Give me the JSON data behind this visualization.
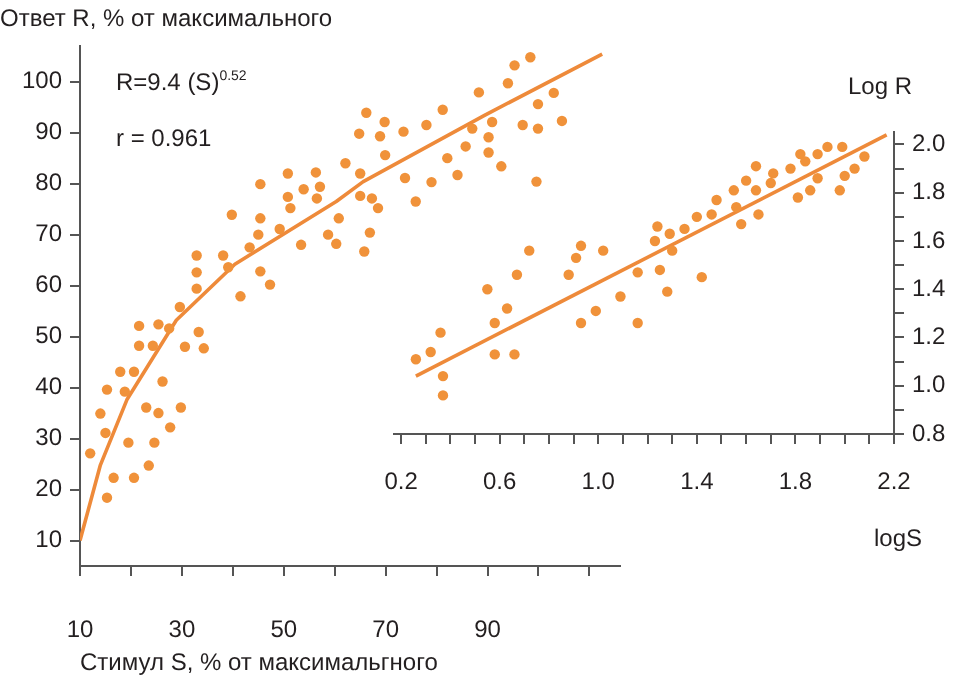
{
  "chart_data": [
    {
      "type": "scatter",
      "xlabel": "Стимул S, % от максимальгного",
      "ylabel": "Ответ R, % от максимального",
      "annotations": [
        "R=9.4 (S)$^{0.52}$",
        "r = 0.961"
      ],
      "xlim": [
        10,
        116
      ],
      "xticks": [
        10,
        {
          "value": 20,
          "label": null
        },
        30,
        {
          "value": 40,
          "label": null
        },
        50,
        {
          "value": 60,
          "label": null
        },
        70,
        {
          "value": 80,
          "label": null
        },
        90,
        {
          "value": 100,
          "label": null
        },
        {
          "value": 110,
          "label": null
        }
      ],
      "ylim": [
        5,
        107
      ],
      "yticks": [
        10,
        20,
        30,
        40,
        50,
        60,
        70,
        80,
        90,
        100
      ],
      "grid": false,
      "legend": false,
      "marker": "circle",
      "series": [
        {
          "type": "scatter",
          "color": "#f0923a",
          "x": [
            12.0,
            14,
            15,
            15.3,
            15.3,
            16.6,
            17.9,
            18.8,
            19.5,
            20.6,
            20.6,
            21.6,
            21.6,
            23,
            23.5,
            24.3,
            24.6,
            25.4,
            25.4,
            26.2,
            27.5,
            27.7,
            29.6,
            29.8,
            30.6,
            32.9,
            32.9,
            32.9,
            33.3,
            34.3,
            38.1,
            39.1,
            39.8,
            41.5,
            43.3,
            45.0,
            45.4,
            45.4,
            45.4,
            47.3,
            49.2,
            50.8,
            50.8,
            51.3,
            53.4,
            53.9,
            56.3,
            56.5,
            57.1,
            58.7,
            60.3,
            60.8,
            62.1,
            64.8,
            65.0,
            65.0,
            65.8,
            66.2,
            66.9,
            67.3,
            68.5,
            68.9,
            69.8,
            69.9,
            73.5,
            73.8,
            75.9,
            78.0,
            79.0,
            81.2,
            82.1,
            84.1,
            85.7,
            87.0,
            88.3,
            95.3,
            98.4,
            94.0,
            90.9,
            90.2,
            90.2,
            92.7,
            96.9,
            99.9,
            99.9,
            99.6,
            103.0,
            104.6
          ],
          "values": [
            27.1,
            34.9,
            31.1,
            39.6,
            18.4,
            22.3,
            43.1,
            39.2,
            29.2,
            43.1,
            22.3,
            52.1,
            48.2,
            36.1,
            24.7,
            48.2,
            29.2,
            52.4,
            35,
            41.2,
            51.6,
            32.2,
            55.8,
            36.1,
            48,
            65.9,
            62.6,
            59.4,
            50.9,
            47.7,
            65.9,
            63.6,
            73.9,
            57.9,
            67.5,
            70,
            79.9,
            73.2,
            62.8,
            60.2,
            71.1,
            82,
            77.4,
            75.2,
            68,
            78.9,
            82.2,
            77.1,
            79.4,
            70,
            68.2,
            73.2,
            84,
            89.8,
            82,
            77.6,
            66.7,
            93.9,
            70.4,
            77.1,
            75.2,
            89.3,
            92.1,
            85.6,
            90.2,
            81.1,
            76.5,
            91.5,
            80.3,
            94.5,
            85.0,
            81.7,
            87.3,
            90.8,
            97.9,
            103.2,
            104.8,
            99.7,
            92.1,
            89.1,
            86.1,
            83.4,
            91.5,
            95.6,
            90.8,
            80.4,
            97.8,
            92.3
          ]
        },
        {
          "type": "line",
          "color": "#ee8a3a",
          "marker": "none",
          "x": [
            10,
            14,
            19.2,
            28.9,
            40.4,
            60.3,
            65.6,
            89.4,
            112.5
          ],
          "values": [
            10,
            24.8,
            37.6,
            53.2,
            64.2,
            76.5,
            80.4,
            93.4,
            105.4
          ]
        }
      ]
    },
    {
      "type": "scatter",
      "xlabel": "logS",
      "ylabel": "Log R",
      "xlim": [
        0.17,
        2.2
      ],
      "xticks": [
        0.2,
        {
          "value": 0.3,
          "label": null
        },
        {
          "value": 0.4,
          "label": null
        },
        {
          "value": 0.5,
          "label": null
        },
        0.6,
        {
          "value": 0.7,
          "label": null
        },
        {
          "value": 0.8,
          "label": null
        },
        {
          "value": 0.9,
          "label": null
        },
        {
          "value": 1.0,
          "label": "1.0"
        },
        {
          "value": 1.1,
          "label": null
        },
        {
          "value": 1.2,
          "label": null
        },
        {
          "value": 1.3,
          "label": null
        },
        1.4,
        {
          "value": 1.5,
          "label": null
        },
        {
          "value": 1.6,
          "label": null
        },
        {
          "value": 1.7,
          "label": null
        },
        1.8,
        {
          "value": 1.9,
          "label": null
        },
        {
          "value": 2.0,
          "label": null
        },
        {
          "value": 2.1,
          "label": null
        },
        2.2
      ],
      "ylim": [
        0.8,
        2.05
      ],
      "yticks": [
        0.8,
        {
          "value": 0.9,
          "label": null
        },
        {
          "value": 1.0,
          "label": "1.0"
        },
        {
          "value": 1.1,
          "label": null
        },
        1.2,
        {
          "value": 1.3,
          "label": null
        },
        1.4,
        {
          "value": 1.5,
          "label": null
        },
        1.6,
        {
          "value": 1.7,
          "label": null
        },
        1.8,
        {
          "value": 1.9,
          "label": null
        },
        {
          "value": 2.0,
          "label": "2.0"
        }
      ],
      "grid": false,
      "legend": false,
      "marker": "circle",
      "series": [
        {
          "type": "scatter",
          "color": "#f0923a",
          "x": [
            0.26,
            0.32,
            0.36,
            0.37,
            0.37,
            0.55,
            0.58,
            0.58,
            0.63,
            0.66,
            0.67,
            0.72,
            0.88,
            0.91,
            0.93,
            0.93,
            0.99,
            1.02,
            1.09,
            1.16,
            1.16,
            1.23,
            1.24,
            1.25,
            1.28,
            1.29,
            1.3,
            1.35,
            1.4,
            1.42,
            1.46,
            1.48,
            1.55,
            1.56,
            1.58,
            1.6,
            1.64,
            1.64,
            1.65,
            1.7,
            1.71,
            1.78,
            1.81,
            1.82,
            1.84,
            1.86,
            1.89,
            1.89,
            1.93,
            1.98,
            1.99,
            2.0,
            2.04,
            2.08
          ],
          "values": [
            1.11,
            1.14,
            1.22,
            1.04,
            0.96,
            1.4,
            1.26,
            1.13,
            1.32,
            1.13,
            1.46,
            1.56,
            1.46,
            1.53,
            1.58,
            1.26,
            1.31,
            1.56,
            1.37,
            1.47,
            1.26,
            1.6,
            1.66,
            1.48,
            1.39,
            1.63,
            1.56,
            1.65,
            1.7,
            1.45,
            1.71,
            1.77,
            1.81,
            1.74,
            1.67,
            1.85,
            1.81,
            1.91,
            1.71,
            1.84,
            1.88,
            1.9,
            1.78,
            1.96,
            1.93,
            1.81,
            1.96,
            1.86,
            1.99,
            1.81,
            1.99,
            1.87,
            1.9,
            1.95
          ]
        },
        {
          "type": "line",
          "color": "#ee8a3a",
          "marker": "none",
          "x": [
            0.26,
            2.17
          ],
          "values": [
            1.04,
            2.04
          ]
        }
      ]
    }
  ]
}
